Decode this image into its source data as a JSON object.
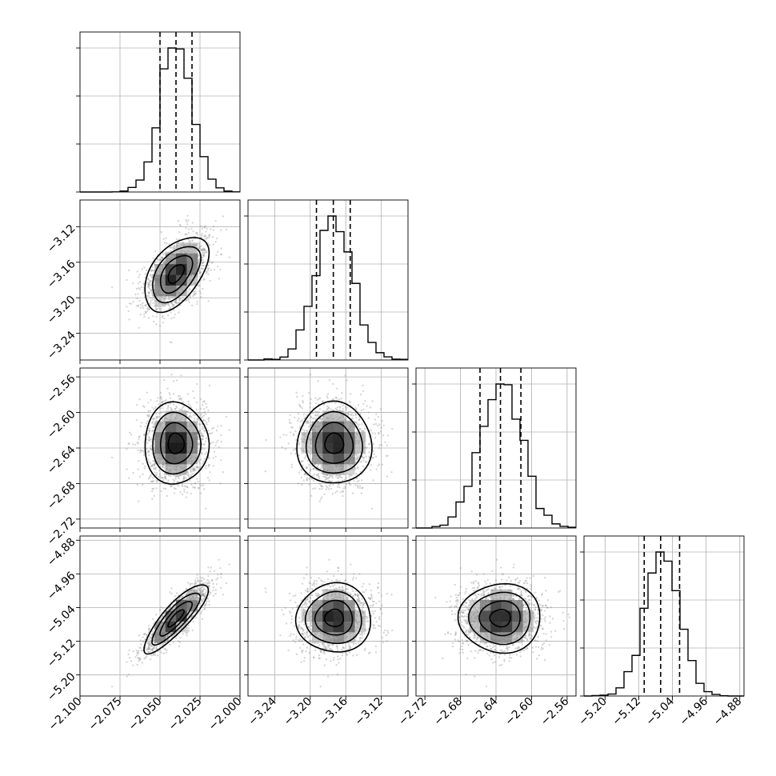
{
  "chart_data": {
    "type": "corner",
    "parameters": [
      {
        "mean": -2.04,
        "sd": 0.01,
        "q16": -2.05,
        "q50": -2.04,
        "q84": -2.03,
        "lim": [
          -2.1,
          -2.0
        ],
        "ticks": [
          -2.1,
          -2.075,
          -2.05,
          -2.025,
          -2.0
        ],
        "tick_labels": [
          "−2.100",
          "−2.075",
          "−2.050",
          "−2.025",
          "−2.000"
        ]
      },
      {
        "mean": -3.173,
        "sd": 0.021,
        "q16": -3.193,
        "q50": -3.174,
        "q84": -3.155,
        "lim": [
          -3.27,
          -3.09
        ],
        "ticks": [
          -3.24,
          -3.2,
          -3.16,
          -3.12
        ],
        "tick_labels": [
          "−3.24",
          "−3.20",
          "−3.16",
          "−3.12"
        ]
      },
      {
        "mean": -2.635,
        "sd": 0.023,
        "q16": -2.658,
        "q50": -2.635,
        "q84": -2.612,
        "lim": [
          -2.73,
          -2.55
        ],
        "ticks": [
          -2.72,
          -2.68,
          -2.64,
          -2.6,
          -2.56
        ],
        "tick_labels": [
          "−2.72",
          "−2.68",
          "−2.64",
          "−2.60",
          "−2.56"
        ]
      },
      {
        "mean": -5.065,
        "sd": 0.041,
        "q16": -5.107,
        "q50": -5.068,
        "q84": -5.023,
        "lim": [
          -5.25,
          -4.87
        ],
        "ticks": [
          -5.2,
          -5.12,
          -5.04,
          -4.96,
          -4.88
        ],
        "tick_labels": [
          "−5.20",
          "−5.12",
          "−5.04",
          "−4.96",
          "−4.88"
        ]
      }
    ],
    "correlations": [
      [
        1,
        0.5,
        0.0,
        0.85
      ],
      [
        0.5,
        1,
        0.0,
        0.0
      ],
      [
        0.0,
        0.0,
        1,
        0.0
      ],
      [
        0.85,
        0.0,
        0.0,
        1
      ]
    ],
    "grid": true,
    "colors": {
      "points": "#8c8c8c",
      "lines": "#000000",
      "density_max": "#000000",
      "grid": "#b0b0b0"
    }
  }
}
